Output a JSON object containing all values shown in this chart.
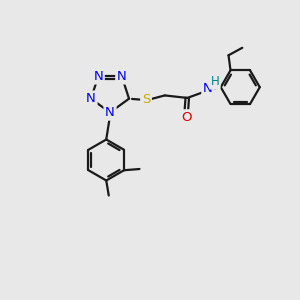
{
  "bg_color": "#e8e8e8",
  "bond_color": "#1a1a1a",
  "N_color": "#0000ee",
  "S_color": "#ccaa00",
  "O_color": "#dd0000",
  "H_color": "#008080",
  "figsize": [
    3.0,
    3.0
  ],
  "dpi": 100,
  "xlim": [
    -1,
    11
  ],
  "ylim": [
    -1,
    11
  ]
}
